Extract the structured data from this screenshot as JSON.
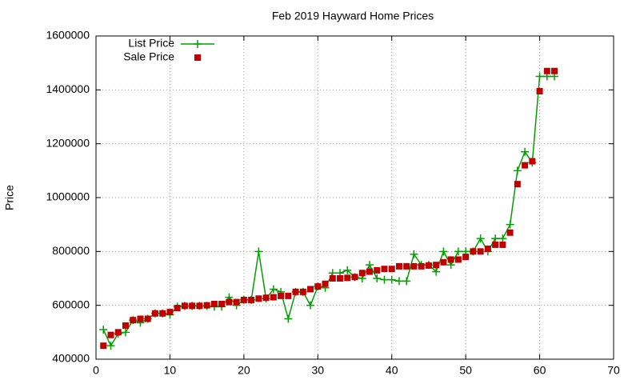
{
  "chart_data": {
    "type": "line",
    "title": "Feb 2019 Hayward Home Prices",
    "y_label": "Price",
    "x": [
      1,
      2,
      3,
      4,
      5,
      6,
      7,
      8,
      9,
      10,
      11,
      12,
      13,
      14,
      15,
      16,
      17,
      18,
      19,
      20,
      21,
      22,
      23,
      24,
      25,
      26,
      27,
      28,
      29,
      30,
      31,
      32,
      33,
      34,
      35,
      36,
      37,
      38,
      39,
      40,
      41,
      42,
      43,
      44,
      45,
      46,
      47,
      48,
      49,
      50,
      51,
      52,
      53,
      54,
      55,
      56,
      57,
      58,
      59,
      60,
      61,
      62
    ],
    "series": [
      {
        "name": "List Price",
        "color": "#00a000",
        "mode": "linespoints",
        "marker": "plus",
        "values": [
          510000,
          450000,
          495000,
          500000,
          545000,
          535000,
          550000,
          570000,
          570000,
          565000,
          595000,
          598000,
          598000,
          598000,
          598000,
          595000,
          595000,
          630000,
          600000,
          620000,
          620000,
          800000,
          625000,
          660000,
          650000,
          550000,
          650000,
          650000,
          600000,
          670000,
          665000,
          720000,
          720000,
          730000,
          705000,
          700000,
          750000,
          700000,
          695000,
          695000,
          690000,
          690000,
          790000,
          750000,
          750000,
          725000,
          800000,
          750000,
          800000,
          800000,
          800000,
          848000,
          800000,
          848000,
          848000,
          900000,
          1100000,
          1170000,
          1130000,
          1450000,
          1450000,
          1450000
        ]
      },
      {
        "name": "Sale Price",
        "color": "#c00000",
        "mode": "points",
        "marker": "square",
        "values": [
          450000,
          490000,
          500000,
          525000,
          545000,
          550000,
          550000,
          570000,
          570000,
          575000,
          590000,
          598000,
          598000,
          598000,
          600000,
          605000,
          605000,
          612000,
          612000,
          620000,
          620000,
          625000,
          628000,
          630000,
          635000,
          635000,
          650000,
          650000,
          660000,
          670000,
          680000,
          700000,
          700000,
          702000,
          705000,
          720000,
          725000,
          730000,
          735000,
          735000,
          745000,
          745000,
          745000,
          745000,
          748000,
          750000,
          760000,
          770000,
          770000,
          780000,
          800000,
          800000,
          810000,
          825000,
          825000,
          870000,
          1050000,
          1120000,
          1135000,
          1395000,
          1470000,
          1470000
        ]
      }
    ],
    "xlim": [
      0,
      70
    ],
    "xticks": [
      0,
      10,
      20,
      30,
      40,
      50,
      60,
      70
    ],
    "ylim": [
      400000,
      1600000
    ],
    "yticks": [
      400000,
      600000,
      800000,
      1000000,
      1200000,
      1400000,
      1600000
    ],
    "grid": true,
    "legend": "top-left"
  }
}
